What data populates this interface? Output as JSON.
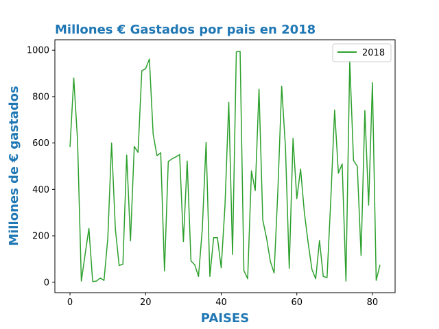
{
  "chart_data": {
    "type": "line",
    "title": "Millones € Gastados por pais en 2018",
    "xlabel": "PAISES",
    "ylabel": "Millones de € gastados",
    "xlim": [
      -4,
      86
    ],
    "ylim": [
      -45,
      1045
    ],
    "xticks": [
      0,
      20,
      40,
      60,
      80
    ],
    "yticks": [
      0,
      200,
      400,
      600,
      800,
      1000
    ],
    "grid": false,
    "legend_position": "top-right",
    "colors": {
      "title": "#1f77b4",
      "axis_label": "#1f77b4",
      "line": "#2ca02c"
    },
    "series": [
      {
        "name": "2018",
        "color": "#2ca02c",
        "x": [
          0,
          1,
          2,
          3,
          4,
          5,
          6,
          7,
          8,
          9,
          10,
          11,
          12,
          13,
          14,
          15,
          16,
          17,
          18,
          19,
          20,
          21,
          22,
          23,
          24,
          25,
          26,
          27,
          28,
          29,
          30,
          31,
          32,
          33,
          34,
          35,
          36,
          37,
          38,
          39,
          40,
          41,
          42,
          43,
          44,
          45,
          46,
          47,
          48,
          49,
          50,
          51,
          52,
          53,
          54,
          55,
          56,
          57,
          58,
          59,
          60,
          61,
          62,
          63,
          64,
          65,
          66,
          67,
          68,
          69,
          70,
          71,
          72,
          73,
          74,
          75,
          76,
          77,
          78,
          79,
          80,
          81,
          82
        ],
        "values": [
          583,
          880,
          610,
          5,
          120,
          232,
          3,
          5,
          18,
          8,
          190,
          600,
          230,
          72,
          78,
          548,
          178,
          585,
          560,
          912,
          920,
          962,
          638,
          545,
          558,
          48,
          520,
          532,
          540,
          550,
          175,
          522,
          92,
          75,
          25,
          230,
          603,
          25,
          192,
          192,
          62,
          330,
          775,
          120,
          993,
          995,
          50,
          15,
          480,
          395,
          832,
          268,
          190,
          90,
          40,
          400,
          845,
          580,
          60,
          620,
          360,
          488,
          300,
          170,
          55,
          15,
          180,
          25,
          20,
          360,
          742,
          470,
          510,
          5,
          955,
          525,
          500,
          115,
          740,
          332,
          860,
          8,
          75
        ]
      }
    ]
  }
}
